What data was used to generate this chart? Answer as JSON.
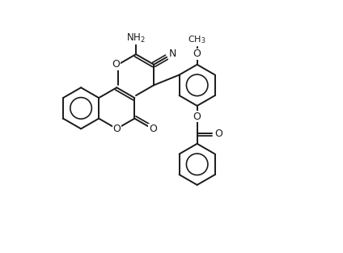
{
  "bg": "#ffffff",
  "lc": "#1a1a1a",
  "lw": 1.4,
  "fs": 8.5,
  "figsize": [
    4.24,
    3.13
  ],
  "dpi": 100,
  "xlim": [
    -2.1,
    2.9
  ],
  "ylim": [
    -2.8,
    1.6
  ]
}
